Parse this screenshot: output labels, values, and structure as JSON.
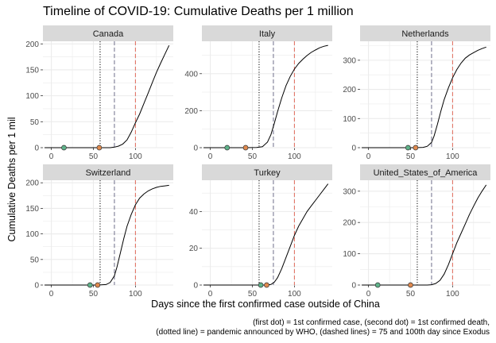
{
  "title": "Timeline of COVID-19: Cumulative Deaths per 1 million",
  "ylabel": "Cumulative Deaths per 1 mil",
  "xlabel": "Days since the first confirmed case outside of China",
  "caption_line1": "(first dot) = 1st confirmed case, (second dot) = 1st confirmed death,",
  "caption_line2": "(dotted line) = pandemic announced by WHO, (dashed lines) = 75 and 100th day since Exodus",
  "colors": {
    "panel_bg": "#ffffff",
    "strip_bg": "#d9d9d9",
    "grid": "#ebebeb",
    "first_case_dot": "#5fb38a",
    "first_death_dot": "#e08a4f",
    "dashed_75": "#6e6e8a",
    "dashed_100": "#e06a5a",
    "who_dotted": "#000000"
  },
  "chart_data": {
    "type": "line",
    "x_ticks": [
      0,
      50,
      100
    ],
    "xlim": [
      -10,
      145
    ],
    "who_pandemic_day": 58,
    "dashed_days": [
      75,
      100
    ],
    "panels": [
      {
        "name": "Canada",
        "ylim": [
          0,
          205
        ],
        "y_ticks": [
          0,
          50,
          100,
          150,
          200
        ],
        "first_case_day": 15,
        "first_death_day": 57,
        "x": [
          -8,
          20,
          40,
          57,
          70,
          75,
          80,
          85,
          90,
          95,
          100,
          105,
          110,
          115,
          120,
          125,
          130,
          135,
          140
        ],
        "y": [
          0,
          0,
          0,
          0,
          0,
          1,
          3,
          7,
          15,
          30,
          48,
          65,
          85,
          105,
          125,
          145,
          163,
          180,
          197
        ]
      },
      {
        "name": "Italy",
        "ylim": [
          0,
          575
        ],
        "y_ticks": [
          0,
          200,
          400
        ],
        "first_case_day": 20,
        "first_death_day": 42,
        "x": [
          -8,
          20,
          42,
          55,
          62,
          68,
          72,
          76,
          80,
          85,
          90,
          95,
          100,
          105,
          110,
          115,
          120,
          125,
          130,
          135,
          140
        ],
        "y": [
          0,
          0,
          0,
          1,
          5,
          30,
          70,
          130,
          195,
          270,
          335,
          385,
          425,
          455,
          478,
          498,
          515,
          528,
          540,
          548,
          553
        ]
      },
      {
        "name": "Netherlands",
        "ylim": [
          0,
          365
        ],
        "y_ticks": [
          0,
          100,
          200,
          300
        ],
        "first_case_day": 47,
        "first_death_day": 56,
        "x": [
          -8,
          20,
          47,
          56,
          65,
          70,
          75,
          78,
          82,
          86,
          90,
          95,
          100,
          105,
          110,
          115,
          120,
          125,
          130,
          135,
          140
        ],
        "y": [
          0,
          0,
          0,
          0,
          1,
          5,
          18,
          40,
          80,
          125,
          165,
          205,
          240,
          268,
          290,
          307,
          318,
          326,
          334,
          340,
          345
        ]
      },
      {
        "name": "Switzerland",
        "ylim": [
          0,
          205
        ],
        "y_ticks": [
          0,
          50,
          100,
          150,
          200
        ],
        "first_case_day": 46,
        "first_death_day": 55,
        "x": [
          -8,
          20,
          46,
          55,
          65,
          70,
          75,
          78,
          82,
          86,
          90,
          95,
          100,
          105,
          110,
          115,
          120,
          125,
          130,
          135,
          140
        ],
        "y": [
          0,
          0,
          0,
          0,
          1,
          5,
          18,
          35,
          62,
          90,
          115,
          138,
          157,
          170,
          178,
          184,
          188,
          191,
          193,
          194,
          195
        ]
      },
      {
        "name": "Turkey",
        "ylim": [
          0,
          57
        ],
        "y_ticks": [
          0,
          20,
          40
        ],
        "first_case_day": 60,
        "first_death_day": 67,
        "x": [
          -8,
          20,
          60,
          67,
          72,
          76,
          80,
          85,
          90,
          95,
          100,
          105,
          110,
          115,
          120,
          125,
          130,
          135,
          140
        ],
        "y": [
          0,
          0,
          0,
          0,
          0.3,
          1.5,
          4,
          9,
          15,
          21,
          27,
          32,
          36,
          40,
          43,
          46,
          49,
          52,
          55
        ]
      },
      {
        "name": "United_States_of_America",
        "ylim": [
          0,
          335
        ],
        "y_ticks": [
          0,
          100,
          200,
          300
        ],
        "first_case_day": 11,
        "first_death_day": 50,
        "x": [
          -8,
          20,
          50,
          60,
          70,
          75,
          80,
          85,
          90,
          95,
          100,
          105,
          110,
          115,
          120,
          125,
          130,
          135,
          140
        ],
        "y": [
          0,
          0,
          0,
          0,
          0,
          1,
          5,
          15,
          35,
          65,
          100,
          135,
          165,
          195,
          225,
          252,
          278,
          300,
          320
        ]
      }
    ]
  }
}
